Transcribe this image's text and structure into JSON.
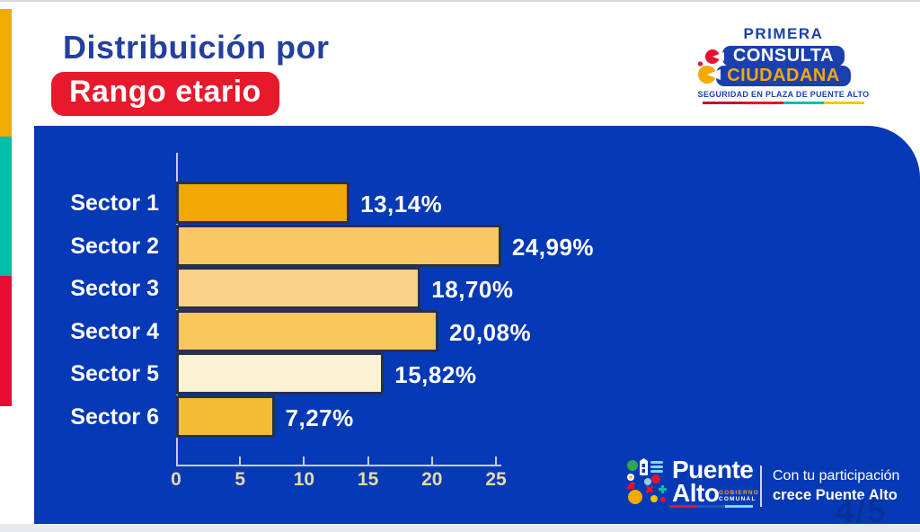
{
  "page": {
    "indicator": "4/5"
  },
  "header": {
    "title_line1": "Distribuición por",
    "title_line2": "Rango etario"
  },
  "consulta_logo": {
    "line1": "PRIMERA",
    "line2": "CONSULTA",
    "line3": "CIUDADANA",
    "tagline": "SEGURIDAD EN PLAZA DE PUENTE ALTO",
    "colorline": [
      "#C20E2E",
      "#E8112D",
      "#00BFA8",
      "#F7C600"
    ]
  },
  "puente_logo": {
    "name_line1": "Puente",
    "name_line2": "Alto",
    "subtext_line1": "GOBIERNO",
    "subtext_line2": "COMUNAL",
    "underline": [
      "#E8112D",
      "#1857C2",
      "#7FD6EA"
    ],
    "tagline_line1": "Con tu participación",
    "tagline_line2": "crece Puente Alto"
  },
  "chart_data": {
    "type": "bar",
    "orientation": "horizontal",
    "title": "Distribuición por Rango etario",
    "xlabel": "",
    "ylabel": "",
    "categories": [
      "Sector 1",
      "Sector 2",
      "Sector 3",
      "Sector 4",
      "Sector 5",
      "Sector 6"
    ],
    "values": [
      13.14,
      24.99,
      18.7,
      20.08,
      15.82,
      7.27
    ],
    "value_labels": [
      "13,14%",
      "24,99%",
      "18,70%",
      "20,08%",
      "15,82%",
      "7,27%"
    ],
    "bar_colors": [
      "#F2A705",
      "#F9C763",
      "#F9D287",
      "#F8C75C",
      "#FAF0D2",
      "#F4BB35"
    ],
    "xlim": [
      0,
      25
    ],
    "x_ticks": [
      0,
      5,
      10,
      15,
      20,
      25
    ],
    "grid": false,
    "legend": "none"
  },
  "colors": {
    "panel_blue": "#0639B5",
    "title_blue": "#24409F",
    "accent_red": "#E8192C",
    "stripe_yellow": "#F0AC00",
    "stripe_teal": "#00BFA8",
    "stripe_red": "#E90C32",
    "bar_border": "#253052",
    "axis_line": "#C9CBDD",
    "tick_label": "#E5DBAB"
  }
}
